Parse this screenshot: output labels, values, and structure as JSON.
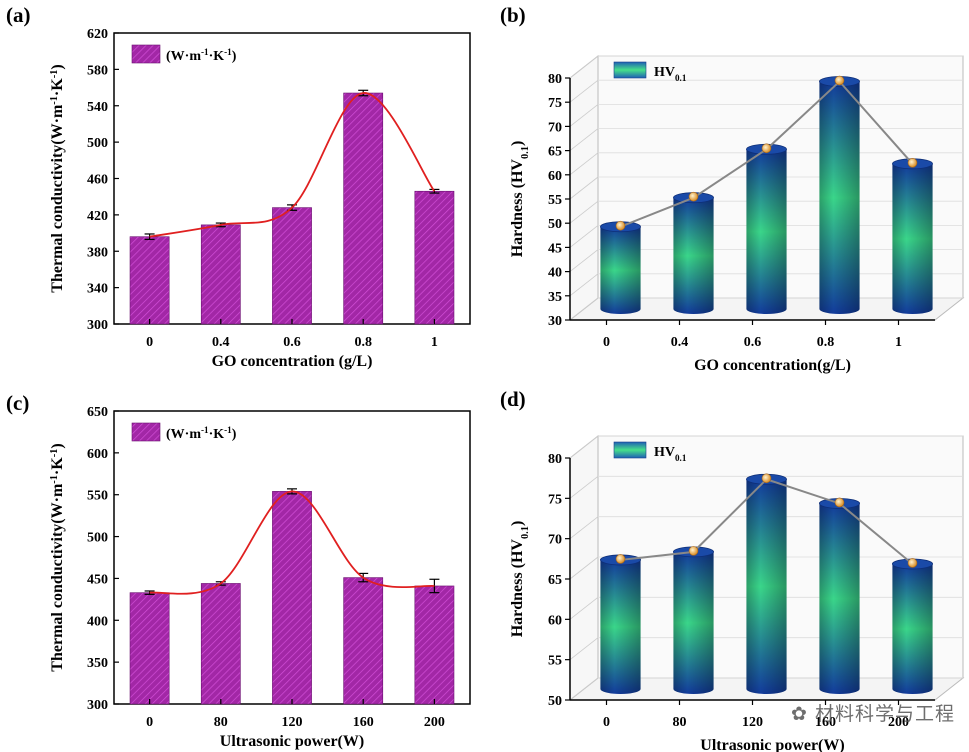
{
  "watermark": "材料科学与工程",
  "chart_data": [
    {
      "panel_label": "(a)",
      "type": "bar",
      "categories": [
        "0",
        "0.4",
        "0.6",
        "0.8",
        "1"
      ],
      "values": [
        396,
        409,
        428,
        554,
        446
      ],
      "errors": [
        3,
        2,
        3,
        3,
        2
      ],
      "series_name": "(W·m⁻¹·K⁻¹)",
      "xlabel": "GO concentration (g/L)",
      "ylabel": "Thermal conductivity(W·m⁻¹·K⁻¹)",
      "ylim": [
        300,
        620
      ],
      "yticks": [
        300,
        340,
        380,
        420,
        460,
        500,
        540,
        580,
        620
      ],
      "bar_color": "#9a1fa0",
      "fit_color": "#e02020"
    },
    {
      "panel_label": "(b)",
      "type": "bar",
      "categories": [
        "0",
        "0.4",
        "0.6",
        "0.8",
        "1"
      ],
      "values": [
        47,
        53,
        63,
        77,
        60
      ],
      "series_name": "HV0.1",
      "xlabel": "GO concentration(g/L)",
      "ylabel": "Hardness (HV0.1)",
      "ylim": [
        30,
        80
      ],
      "yticks": [
        30,
        35,
        40,
        45,
        50,
        55,
        60,
        65,
        70,
        75,
        80
      ],
      "bar_color": "#1f5fb4",
      "line_color": "#888888"
    },
    {
      "panel_label": "(c)",
      "type": "bar",
      "categories": [
        "0",
        "80",
        "120",
        "160",
        "200"
      ],
      "values": [
        433,
        444,
        554,
        451,
        441
      ],
      "errors": [
        2,
        2,
        3,
        5,
        8
      ],
      "series_name": "(W·m⁻¹·K⁻¹)",
      "xlabel": "Ultrasonic power(W)",
      "ylabel": "Thermal conductivity(W·m⁻¹·K⁻¹)",
      "ylim": [
        300,
        650
      ],
      "yticks": [
        300,
        350,
        400,
        450,
        500,
        550,
        600,
        650
      ],
      "bar_color": "#9a1fa0",
      "fit_color": "#e02020"
    },
    {
      "panel_label": "(d)",
      "type": "bar",
      "categories": [
        "0",
        "80",
        "120",
        "160",
        "200"
      ],
      "values": [
        66,
        67,
        76,
        73,
        65.5
      ],
      "series_name": "HV0.1",
      "xlabel": "Ultrasonic power(W)",
      "ylabel": "Hardness (HV0.1)",
      "ylim": [
        50,
        80
      ],
      "yticks": [
        50,
        55,
        60,
        65,
        70,
        75,
        80
      ],
      "bar_color": "#1f5fb4",
      "line_color": "#888888"
    }
  ]
}
